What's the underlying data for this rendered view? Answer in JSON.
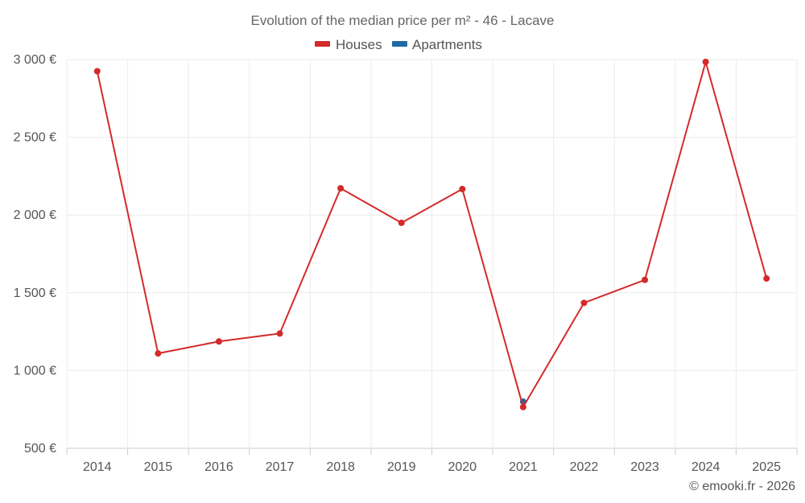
{
  "chart_data": {
    "type": "line",
    "title": "Evolution of the median price per m² - 46 - Lacave",
    "x": [
      "2014",
      "2015",
      "2016",
      "2017",
      "2018",
      "2019",
      "2020",
      "2021",
      "2022",
      "2023",
      "2024",
      "2025"
    ],
    "series": [
      {
        "name": "Houses",
        "color": "#d42a2a",
        "values": [
          2925,
          1110,
          1187,
          1238,
          2172,
          1950,
          2167,
          765,
          1435,
          1583,
          2985,
          1592
        ]
      },
      {
        "name": "Apartments",
        "color": "#1f6aa5",
        "values": [
          null,
          null,
          null,
          null,
          null,
          null,
          null,
          800,
          null,
          null,
          null,
          null
        ]
      }
    ],
    "ylim": [
      500,
      3000
    ],
    "yticks": [
      500,
      1000,
      1500,
      2000,
      2500,
      3000
    ],
    "ytick_labels": [
      "500 €",
      "1 000 €",
      "1 500 €",
      "2 000 €",
      "2 500 €",
      "3 000 €"
    ],
    "xlabel": "",
    "ylabel": "",
    "grid": true,
    "legend_position": "top-center"
  },
  "credit": "© emooki.fr - 2026"
}
